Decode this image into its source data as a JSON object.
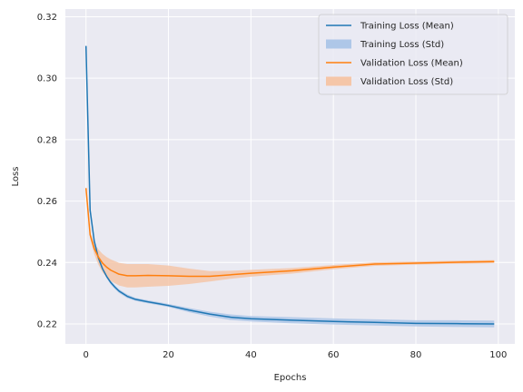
{
  "chart_data": {
    "type": "line",
    "xlabel": "Epochs",
    "ylabel": "Loss",
    "xlim": [
      -5,
      104
    ],
    "ylim": [
      0.2135,
      0.3225
    ],
    "xticks": [
      0,
      20,
      40,
      60,
      80,
      100
    ],
    "yticks": [
      0.22,
      0.24,
      0.26,
      0.28,
      0.3,
      0.32
    ],
    "ytick_labels": [
      "0.22",
      "0.24",
      "0.26",
      "0.28",
      "0.30",
      "0.32"
    ],
    "grid": true,
    "background": "#eaeaf2",
    "legend_position": "top-right",
    "series": [
      {
        "name": "Training Loss (Mean)",
        "std_name": "Training Loss (Std)",
        "color": "#1f77b4",
        "band_color": "#aec7e8",
        "x": [
          0,
          1,
          2,
          3,
          4,
          5,
          6,
          7,
          8,
          10,
          12,
          15,
          18,
          20,
          25,
          30,
          35,
          40,
          50,
          60,
          70,
          80,
          90,
          99
        ],
        "mean": [
          0.3105,
          0.257,
          0.247,
          0.2415,
          0.238,
          0.2355,
          0.2335,
          0.232,
          0.2307,
          0.229,
          0.228,
          0.2272,
          0.2265,
          0.226,
          0.2245,
          0.2232,
          0.2222,
          0.2217,
          0.2212,
          0.2208,
          0.2205,
          0.2202,
          0.2201,
          0.22
        ],
        "std": [
          0.0003,
          0.0004,
          0.0005,
          0.0006,
          0.0006,
          0.0006,
          0.0006,
          0.0006,
          0.0006,
          0.0006,
          0.0005,
          0.0005,
          0.0005,
          0.0005,
          0.0007,
          0.0008,
          0.0009,
          0.0009,
          0.001,
          0.001,
          0.001,
          0.001,
          0.0011,
          0.0011
        ]
      },
      {
        "name": "Validation Loss (Mean)",
        "std_name": "Validation Loss (Std)",
        "color": "#ff7f0e",
        "band_color": "#f5c6a8",
        "x": [
          0,
          1,
          2,
          3,
          4,
          5,
          6,
          8,
          10,
          12,
          15,
          20,
          25,
          30,
          35,
          40,
          50,
          60,
          70,
          80,
          90,
          99
        ],
        "mean": [
          0.2642,
          0.249,
          0.2445,
          0.2418,
          0.2398,
          0.2385,
          0.2375,
          0.2362,
          0.2357,
          0.2357,
          0.2358,
          0.2357,
          0.2355,
          0.2355,
          0.236,
          0.2365,
          0.2373,
          0.2385,
          0.2395,
          0.2398,
          0.2401,
          0.2403
        ],
        "std": [
          0.0004,
          0.001,
          0.0018,
          0.0025,
          0.003,
          0.0033,
          0.0035,
          0.0037,
          0.0038,
          0.0038,
          0.0037,
          0.0033,
          0.0025,
          0.0017,
          0.0013,
          0.0011,
          0.0009,
          0.0007,
          0.0006,
          0.0005,
          0.0005,
          0.0005
        ]
      }
    ]
  }
}
